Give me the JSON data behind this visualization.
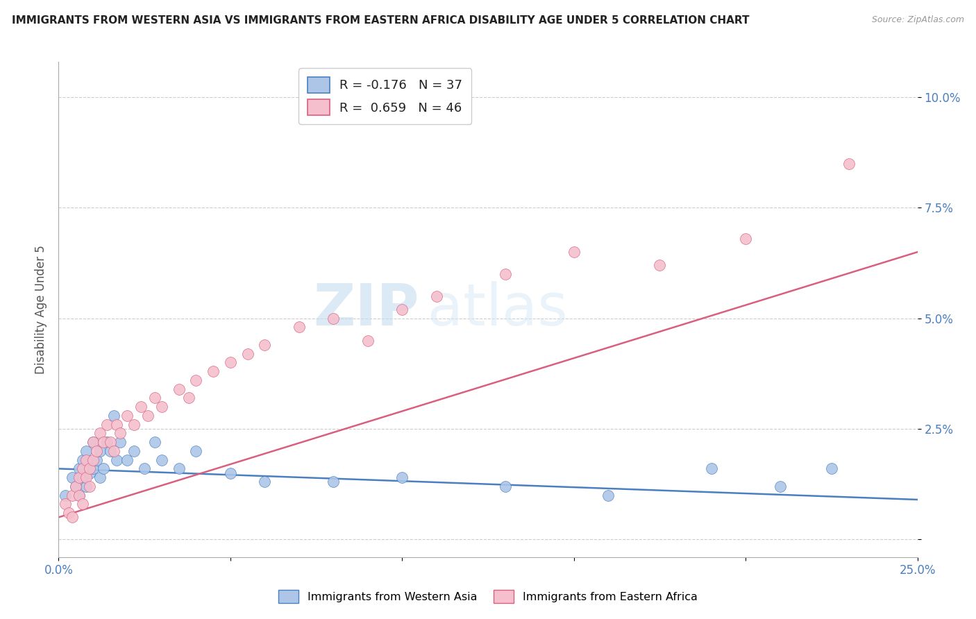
{
  "title": "IMMIGRANTS FROM WESTERN ASIA VS IMMIGRANTS FROM EASTERN AFRICA DISABILITY AGE UNDER 5 CORRELATION CHART",
  "source": "Source: ZipAtlas.com",
  "ylabel": "Disability Age Under 5",
  "color_blue": "#adc6e8",
  "color_pink": "#f5bfcd",
  "line_color_blue": "#4a7fc1",
  "line_color_pink": "#d95f7f",
  "watermark_zip": "ZIP",
  "watermark_atlas": "atlas",
  "xmin": 0.0,
  "xmax": 0.25,
  "ymin": -0.004,
  "ymax": 0.108,
  "blue_line_x": [
    0.0,
    0.25
  ],
  "blue_line_y": [
    0.016,
    0.009
  ],
  "pink_line_x": [
    0.0,
    0.25
  ],
  "pink_line_y": [
    0.005,
    0.065
  ],
  "western_asia_x": [
    0.002,
    0.004,
    0.005,
    0.006,
    0.006,
    0.007,
    0.007,
    0.008,
    0.008,
    0.009,
    0.01,
    0.01,
    0.011,
    0.012,
    0.012,
    0.013,
    0.014,
    0.015,
    0.016,
    0.017,
    0.018,
    0.02,
    0.022,
    0.025,
    0.028,
    0.03,
    0.035,
    0.04,
    0.05,
    0.06,
    0.08,
    0.1,
    0.13,
    0.16,
    0.19,
    0.21,
    0.225
  ],
  "western_asia_y": [
    0.01,
    0.014,
    0.012,
    0.016,
    0.01,
    0.018,
    0.014,
    0.012,
    0.02,
    0.015,
    0.022,
    0.016,
    0.018,
    0.014,
    0.02,
    0.016,
    0.022,
    0.02,
    0.028,
    0.018,
    0.022,
    0.018,
    0.02,
    0.016,
    0.022,
    0.018,
    0.016,
    0.02,
    0.015,
    0.013,
    0.013,
    0.014,
    0.012,
    0.01,
    0.016,
    0.012,
    0.016
  ],
  "eastern_africa_x": [
    0.002,
    0.003,
    0.004,
    0.005,
    0.006,
    0.006,
    0.007,
    0.007,
    0.008,
    0.008,
    0.009,
    0.009,
    0.01,
    0.01,
    0.011,
    0.012,
    0.013,
    0.014,
    0.015,
    0.016,
    0.017,
    0.018,
    0.02,
    0.022,
    0.024,
    0.026,
    0.028,
    0.03,
    0.035,
    0.038,
    0.04,
    0.045,
    0.05,
    0.055,
    0.06,
    0.07,
    0.08,
    0.09,
    0.1,
    0.11,
    0.13,
    0.15,
    0.175,
    0.2,
    0.23,
    0.004
  ],
  "eastern_africa_y": [
    0.008,
    0.006,
    0.01,
    0.012,
    0.014,
    0.01,
    0.016,
    0.008,
    0.014,
    0.018,
    0.012,
    0.016,
    0.018,
    0.022,
    0.02,
    0.024,
    0.022,
    0.026,
    0.022,
    0.02,
    0.026,
    0.024,
    0.028,
    0.026,
    0.03,
    0.028,
    0.032,
    0.03,
    0.034,
    0.032,
    0.036,
    0.038,
    0.04,
    0.042,
    0.044,
    0.048,
    0.05,
    0.045,
    0.052,
    0.055,
    0.06,
    0.065,
    0.062,
    0.068,
    0.085,
    0.005
  ]
}
